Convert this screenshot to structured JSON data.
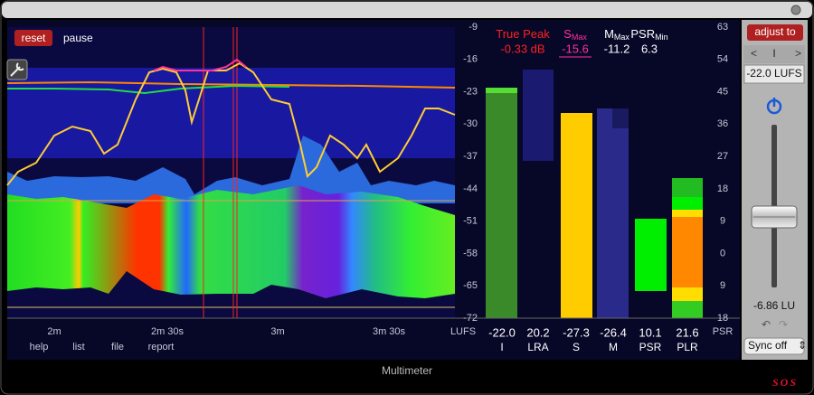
{
  "buttons": {
    "reset": "reset",
    "pause": "pause"
  },
  "time_axis": [
    "2m",
    "2m 30s",
    "3m",
    "3m 30s"
  ],
  "menu": [
    "help",
    "list",
    "file",
    "report"
  ],
  "loudness_scale": {
    "ticks": [
      "-9",
      "-16",
      "-23",
      "-30",
      "-37",
      "-44",
      "-51",
      "-58",
      "-65",
      "-72"
    ],
    "unit": "LUFS"
  },
  "readouts": [
    {
      "label": "True Peak",
      "value": "-0.33 dB"
    },
    {
      "label": "S",
      "sub": "Max",
      "value": "-15.6"
    },
    {
      "label": "M",
      "sub": "Max",
      "value": "-11.2"
    },
    {
      "label": "PSR",
      "sub": "Min",
      "value": "6.3"
    }
  ],
  "meters": [
    {
      "value": "-22.0",
      "label": "I"
    },
    {
      "value": "20.2",
      "label": "LRA"
    },
    {
      "value": "-27.3",
      "label": "S"
    },
    {
      "value": "-26.4",
      "label": "M"
    },
    {
      "value": "10.1",
      "label": "PSR"
    },
    {
      "value": "21.6",
      "label": "PLR"
    }
  ],
  "psr_scale": {
    "ticks": [
      "63",
      "54",
      "45",
      "36",
      "27",
      "18",
      "9",
      "0",
      "9",
      "18"
    ],
    "unit": "PSR"
  },
  "side_panel": {
    "adjust": "adjust to",
    "mode": "I",
    "target": "-22.0 LUFS",
    "gain": "-6.86 LU",
    "sync": "Sync off"
  },
  "footer": "Multimeter",
  "badge": "SOS"
}
